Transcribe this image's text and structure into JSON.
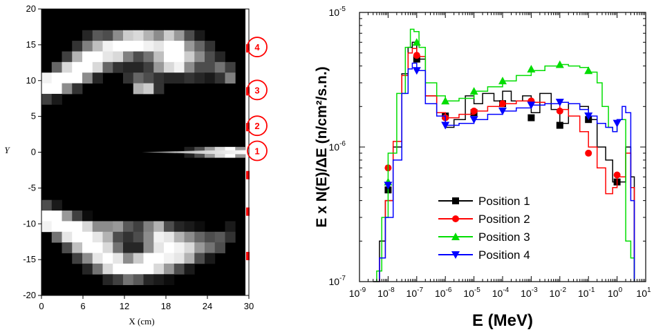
{
  "colors": {
    "black": "#000000",
    "red": "#ff0000",
    "green": "#00dd00",
    "blue": "#0000ff",
    "marker_red": "#ff0000"
  },
  "chart_data": [
    {
      "type": "heatmap",
      "xlabel": "X (cm)",
      "ylabel": "Y",
      "xlim": [
        0,
        30
      ],
      "ylim": [
        -20,
        20
      ],
      "x_ticks": [
        "0",
        "6",
        "12",
        "18",
        "24",
        "30"
      ],
      "y_ticks": [
        "20",
        "15",
        "10",
        "5",
        "0",
        "-5",
        "-10",
        "-15",
        "-20"
      ],
      "grid_size": [
        20,
        27
      ],
      "rows": [
        "00000000000000000000",
        "00000000000000000000",
        "00000000000000000000",
        "00000000000000000000",
        "00000000000000000000",
        "00000000000000000000",
        "00000000001000000000",
        "00000000000000000000",
        "00000000000000000000",
        "00000000000000000000",
        "00000000000000000000",
        "00000000000000000000",
        "00000000000000000000",
        "00000000000000000000",
        "00000000000000000000",
        "00000000000000000000",
        "00000000000000000000",
        "00000000000000000000",
        "00000000000000000000",
        "00000000000000000000",
        "00000000000000000000",
        "00000000000000000000",
        "00000000000000000000",
        "00000000000000000000",
        "00000000000000000000",
        "00000000000000000000",
        "00000000000000000000"
      ],
      "shades": [
        [
          0,
          0,
          0,
          0,
          0,
          0,
          0,
          0,
          0,
          0,
          0,
          0,
          0,
          0,
          0,
          0,
          0,
          0,
          0,
          0
        ],
        [
          0,
          0,
          0,
          0,
          0,
          0,
          0,
          0,
          0,
          0,
          0,
          0,
          0,
          0,
          0,
          0,
          0,
          0,
          0,
          0
        ],
        [
          0,
          0,
          0,
          0,
          0.15,
          0.35,
          0.3,
          0.55,
          0.8,
          0.85,
          0.7,
          0.55,
          0.8,
          0.6,
          0.3,
          0.1,
          0,
          0,
          0,
          0
        ],
        [
          0,
          0,
          0,
          0.2,
          0.5,
          0.75,
          0.95,
          1,
          1,
          1,
          0.95,
          0.9,
          1,
          1,
          0.6,
          0.4,
          0.2,
          0,
          0,
          0
        ],
        [
          0,
          0,
          0.25,
          0.7,
          1,
          1,
          0.9,
          0.85,
          0.5,
          0.3,
          0.45,
          0.75,
          1,
          1,
          0.8,
          0.55,
          0.3,
          0.15,
          0,
          0
        ],
        [
          0,
          0.4,
          0.85,
          1,
          1,
          0.85,
          0.4,
          0.2,
          0.15,
          0.15,
          0.25,
          0.6,
          0.85,
          0.95,
          0.55,
          0.3,
          0.3,
          0.45,
          0.25,
          0
        ],
        [
          0.95,
          1,
          1,
          1,
          0.55,
          0.15,
          0,
          0,
          0.2,
          0.4,
          0.3,
          0.2,
          0.15,
          0.15,
          0.2,
          0.15,
          0.1,
          0.2,
          0.5,
          0
        ],
        [
          1,
          1,
          0.55,
          0.2,
          0,
          0,
          0,
          0,
          0,
          0.7,
          0.8,
          0.2,
          0,
          0,
          0,
          0,
          0,
          0,
          0,
          0
        ],
        [
          0.25,
          0.1,
          0,
          0,
          0,
          0,
          0,
          0,
          0,
          0,
          0,
          0,
          0,
          0,
          0,
          0,
          0,
          0,
          0,
          0
        ],
        [
          0,
          0,
          0,
          0,
          0,
          0,
          0,
          0,
          0,
          0,
          0,
          0,
          0,
          0,
          0,
          0,
          0,
          0,
          0,
          0
        ],
        [
          0,
          0,
          0,
          0,
          0,
          0,
          0,
          0,
          0,
          0,
          0,
          0,
          0,
          0,
          0,
          0,
          0,
          0,
          0,
          0
        ],
        [
          0,
          0,
          0,
          0,
          0,
          0,
          0,
          0,
          0,
          0,
          0,
          0,
          0,
          0,
          0,
          0,
          0,
          0,
          0,
          0
        ],
        [
          0,
          0,
          0,
          0,
          0,
          0,
          0,
          0,
          0,
          0,
          0,
          0,
          0,
          0,
          0,
          0,
          0,
          0,
          0,
          0
        ],
        [
          0,
          0,
          0,
          0,
          0,
          0,
          0,
          0,
          0,
          0,
          0,
          0,
          0,
          0,
          0.12,
          0.3,
          0.6,
          0.85,
          1,
          0.6
        ],
        [
          0,
          0,
          0,
          0,
          0,
          0,
          0,
          0,
          0,
          0,
          0,
          0,
          0,
          0,
          0,
          0,
          0,
          0,
          0,
          0
        ],
        [
          0,
          0,
          0,
          0,
          0,
          0,
          0,
          0,
          0,
          0,
          0,
          0,
          0,
          0,
          0,
          0,
          0,
          0,
          0,
          0
        ],
        [
          0,
          0,
          0,
          0,
          0,
          0,
          0,
          0,
          0,
          0,
          0,
          0,
          0,
          0,
          0,
          0,
          0,
          0,
          0,
          0
        ],
        [
          0,
          0,
          0,
          0,
          0,
          0,
          0,
          0,
          0,
          0,
          0,
          0,
          0,
          0,
          0,
          0,
          0,
          0,
          0,
          0
        ],
        [
          0.3,
          0.1,
          0,
          0,
          0,
          0,
          0,
          0,
          0,
          0,
          0,
          0,
          0,
          0,
          0,
          0,
          0,
          0,
          0,
          0
        ],
        [
          1,
          1,
          0.6,
          0.25,
          0.05,
          0,
          0,
          0,
          0,
          0,
          0,
          0,
          0,
          0,
          0,
          0,
          0,
          0,
          0,
          0
        ],
        [
          0.95,
          1,
          1,
          1,
          0.85,
          0.55,
          0.55,
          0.6,
          0.35,
          0.25,
          0.5,
          0.7,
          0.3,
          0.15,
          0.1,
          0.05,
          0,
          0,
          0.1,
          0
        ],
        [
          0,
          0.45,
          0.9,
          1,
          1,
          0.9,
          0.7,
          0.3,
          0.2,
          0.3,
          0.55,
          0.95,
          0.9,
          0.7,
          0.55,
          0.4,
          0.3,
          0.35,
          0.2,
          0
        ],
        [
          0,
          0,
          0.3,
          0.75,
          1,
          1,
          0.85,
          0.45,
          0.15,
          0.15,
          0.55,
          0.9,
          1,
          0.95,
          0.85,
          0.6,
          0.45,
          0.3,
          0,
          0
        ],
        [
          0,
          0,
          0,
          0.25,
          0.55,
          0.9,
          1,
          0.9,
          0.55,
          0.8,
          1,
          1,
          0.95,
          0.9,
          0.7,
          0.3,
          0.1,
          0,
          0,
          0
        ],
        [
          0,
          0,
          0,
          0,
          0.15,
          0.45,
          0.85,
          1,
          1,
          1,
          1,
          0.85,
          0.6,
          0.3,
          0.1,
          0,
          0,
          0,
          0,
          0
        ],
        [
          0,
          0,
          0,
          0,
          0,
          0,
          0.15,
          0.25,
          0.45,
          0.35,
          0.15,
          0.1,
          0.05,
          0,
          0,
          0,
          0,
          0,
          0,
          0
        ],
        [
          0,
          0,
          0,
          0,
          0,
          0,
          0,
          0,
          0,
          0,
          0,
          0,
          0,
          0,
          0,
          0,
          0,
          0,
          0,
          0
        ]
      ],
      "beam": {
        "x_start": 14.5,
        "x_end": 30,
        "y": 0
      },
      "positions": [
        {
          "label": "1",
          "y": 0
        },
        {
          "label": "2",
          "y": 3.5
        },
        {
          "label": "3",
          "y": 8.5
        },
        {
          "label": "4",
          "y": 14.5
        }
      ],
      "edge_markers_y": [
        14.5,
        8.5,
        3.5,
        -3.2,
        -8.3,
        -14.5
      ]
    },
    {
      "type": "line",
      "xlabel": "E (MeV)",
      "ylabel": "E x N(E)/ΔE (n/cm²/s.n.)",
      "x_scale": "log",
      "y_scale": "log",
      "xlim": [
        1e-09,
        10
      ],
      "ylim": [
        1e-07,
        1e-05
      ],
      "x_ticks": [
        {
          "base": "10",
          "exp": "-9"
        },
        {
          "base": "10",
          "exp": "-8"
        },
        {
          "base": "10",
          "exp": "-7"
        },
        {
          "base": "10",
          "exp": "-6"
        },
        {
          "base": "10",
          "exp": "-5"
        },
        {
          "base": "10",
          "exp": "-4"
        },
        {
          "base": "10",
          "exp": "-3"
        },
        {
          "base": "10",
          "exp": "-2"
        },
        {
          "base": "10",
          "exp": "-1"
        },
        {
          "base": "10",
          "exp": "0"
        },
        {
          "base": "10",
          "exp": "1"
        }
      ],
      "y_ticks": [
        {
          "base": "10",
          "exp": "-5"
        },
        {
          "base": "10",
          "exp": "-6"
        },
        {
          "base": "10",
          "exp": "-7"
        }
      ],
      "legend": {
        "placement": "bottom-center"
      },
      "series": [
        {
          "name": "Position 1",
          "color": "#000000",
          "marker": "square",
          "x": [
            3e-09,
            5e-09,
            8e-09,
            1.5e-08,
            3e-08,
            5e-08,
            7e-08,
            1e-07,
            2e-07,
            5e-07,
            1e-06,
            2e-06,
            5e-06,
            1e-05,
            2e-05,
            5e-05,
            0.0001,
            0.0002,
            0.0005,
            0.001,
            0.002,
            0.005,
            0.01,
            0.02,
            0.05,
            0.1,
            0.2,
            0.4,
            0.7,
            1,
            2,
            3,
            4
          ],
          "y": [
            1e-07,
            2e-07,
            4e-07,
            1e-06,
            3.5e-06,
            5.5e-06,
            6e-06,
            4.5e-06,
            2.4e-06,
            1.8e-06,
            1.4e-06,
            1.6e-06,
            2.4e-06,
            2.1e-06,
            2.5e-06,
            2.2e-06,
            2.6e-06,
            2.2e-06,
            2.4e-06,
            1.8e-06,
            2.5e-06,
            1.9e-06,
            1.5e-06,
            2.1e-06,
            2e-06,
            1.6e-06,
            1e-06,
            8e-07,
            5.5e-07,
            5.5e-07,
            1e-06,
            6e-07,
            1e-07
          ],
          "markers_x": [
            1e-08,
            1e-07,
            1e-06,
            1e-05,
            0.0001,
            0.001,
            0.01,
            0.1,
            1
          ],
          "markers_y": [
            4.8e-07,
            4.5e-06,
            1.7e-06,
            1.8e-06,
            2.1e-06,
            1.65e-06,
            1.45e-06,
            1.6e-06,
            5.5e-07
          ]
        },
        {
          "name": "Position 2",
          "color": "#ff0000",
          "marker": "circle",
          "x": [
            5e-09,
            8e-09,
            1.5e-08,
            3e-08,
            5e-08,
            7e-08,
            1e-07,
            2e-07,
            5e-07,
            1e-06,
            3e-06,
            1e-05,
            3e-05,
            0.0001,
            0.0003,
            0.001,
            0.003,
            0.01,
            0.02,
            0.05,
            0.1,
            0.2,
            0.4,
            0.7,
            1,
            2,
            3,
            4
          ],
          "y": [
            1.5e-07,
            4e-07,
            1.1e-06,
            3.4e-06,
            5e-06,
            5.4e-06,
            4.7e-06,
            2.4e-06,
            1.8e-06,
            1.65e-06,
            1.75e-06,
            1.85e-06,
            2e-06,
            2.1e-06,
            2.2e-06,
            2.15e-06,
            2.1e-06,
            1.9e-06,
            1.7e-06,
            1.3e-06,
            1e-06,
            7e-07,
            4.5e-07,
            5e-07,
            6e-07,
            9e-07,
            5e-07,
            1e-07
          ],
          "markers_x": [
            1e-08,
            1e-07,
            1e-06,
            1e-05,
            0.0001,
            0.001,
            0.01,
            0.1,
            1
          ],
          "markers_y": [
            7e-07,
            4.8e-06,
            1.65e-06,
            1.85e-06,
            2.1e-06,
            2.2e-06,
            1.85e-06,
            9e-07,
            6.2e-07
          ]
        },
        {
          "name": "Position 3",
          "color": "#00dd00",
          "marker": "triangle-up",
          "x": [
            4e-09,
            6e-09,
            1e-08,
            2e-08,
            4e-08,
            6e-08,
            8e-08,
            1.2e-07,
            2e-07,
            5e-07,
            1e-06,
            3e-06,
            1e-05,
            3e-05,
            0.0001,
            0.0003,
            0.001,
            0.003,
            0.01,
            0.02,
            0.05,
            0.1,
            0.2,
            0.3,
            0.5,
            0.7,
            1,
            1.5,
            2,
            3,
            4
          ],
          "y": [
            1.2e-07,
            3e-07,
            9e-07,
            2.5e-06,
            5.5e-06,
            7.5e-06,
            7.2e-06,
            5.5e-06,
            3e-06,
            2.4e-06,
            2.2e-06,
            2.3e-06,
            2.6e-06,
            2.8e-06,
            3.1e-06,
            3.4e-06,
            3.7e-06,
            4e-06,
            4.1e-06,
            4e-06,
            3.9e-06,
            3.6e-06,
            3e-06,
            2e-06,
            1.4e-06,
            1.3e-06,
            1.6e-06,
            1.6e-06,
            2e-07,
            1.5e-07,
            1e-07
          ],
          "markers_x": [
            1e-08,
            1e-07,
            1e-06,
            1e-05,
            0.0001,
            0.001,
            0.01,
            0.1
          ],
          "markers_y": [
            5.5e-07,
            6e-06,
            2.2e-06,
            2.6e-06,
            3.1e-06,
            3.8e-06,
            4.1e-06,
            3.7e-06
          ]
        },
        {
          "name": "Position 4",
          "color": "#0000ff",
          "marker": "triangle-down",
          "x": [
            5e-09,
            8e-09,
            1.5e-08,
            3e-08,
            5e-08,
            7e-08,
            1e-07,
            2e-07,
            5e-07,
            1e-06,
            3e-06,
            1e-05,
            3e-05,
            0.0001,
            0.0003,
            0.001,
            0.003,
            0.01,
            0.02,
            0.05,
            0.1,
            0.2,
            0.4,
            0.7,
            1,
            1.5,
            2,
            3,
            4
          ],
          "y": [
            1.5e-07,
            3e-07,
            8e-07,
            2.5e-06,
            3.8e-06,
            4.2e-06,
            3.7e-06,
            2.1e-06,
            1.7e-06,
            1.45e-06,
            1.5e-06,
            1.6e-06,
            1.75e-06,
            1.85e-06,
            1.95e-06,
            2.05e-06,
            2.1e-06,
            2.15e-06,
            2.1e-06,
            1.9e-06,
            1.7e-06,
            1.5e-06,
            1.4e-06,
            1.3e-06,
            1.6e-06,
            2e-06,
            1.8e-06,
            4e-07,
            1e-07
          ],
          "markers_x": [
            1e-08,
            1e-07,
            1e-06,
            1e-05,
            0.0001,
            0.001,
            0.01,
            0.1,
            1
          ],
          "markers_y": [
            5.2e-07,
            3.7e-06,
            1.45e-06,
            1.6e-06,
            1.85e-06,
            2.05e-06,
            2.15e-06,
            1.7e-06,
            1.5e-06
          ]
        }
      ]
    }
  ]
}
